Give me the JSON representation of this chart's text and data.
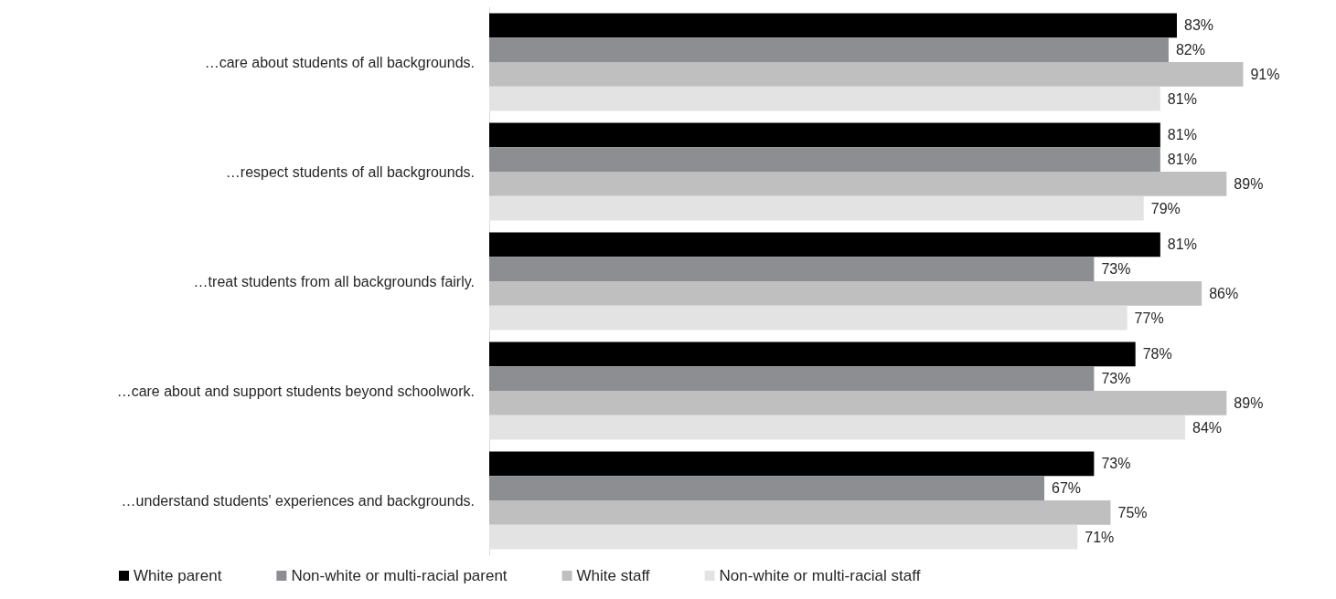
{
  "chart_data": {
    "type": "bar",
    "orientation": "horizontal",
    "categories": [
      "…care about students of all backgrounds.",
      "…respect students of all backgrounds.",
      "…treat students from all backgrounds fairly.",
      "…care about and support students beyond schoolwork.",
      "…understand students' experiences and backgrounds."
    ],
    "series": [
      {
        "name": "White parent",
        "color": "#000000",
        "values": [
          83,
          81,
          81,
          78,
          73
        ],
        "value_labels": [
          "83%",
          "81%",
          "81%",
          "78%",
          "73%"
        ]
      },
      {
        "name": "Non-white or multi-racial parent",
        "color": "#8c8e91",
        "values": [
          82,
          81,
          73,
          73,
          67
        ],
        "value_labels": [
          "82%",
          "81%",
          "73%",
          "73%",
          "67%"
        ]
      },
      {
        "name": "White staff",
        "color": "#bfbfbf",
        "values": [
          91,
          89,
          86,
          89,
          75
        ],
        "value_labels": [
          "91%",
          "89%",
          "86%",
          "89%",
          "75%"
        ]
      },
      {
        "name": "Non-white or multi-racial staff",
        "color": "#e3e3e3",
        "values": [
          81,
          79,
          77,
          84,
          71
        ],
        "value_labels": [
          "81%",
          "79%",
          "77%",
          "84%",
          "71%"
        ]
      }
    ],
    "tick_labels": "y",
    "grid": false,
    "legend": "bottom"
  }
}
